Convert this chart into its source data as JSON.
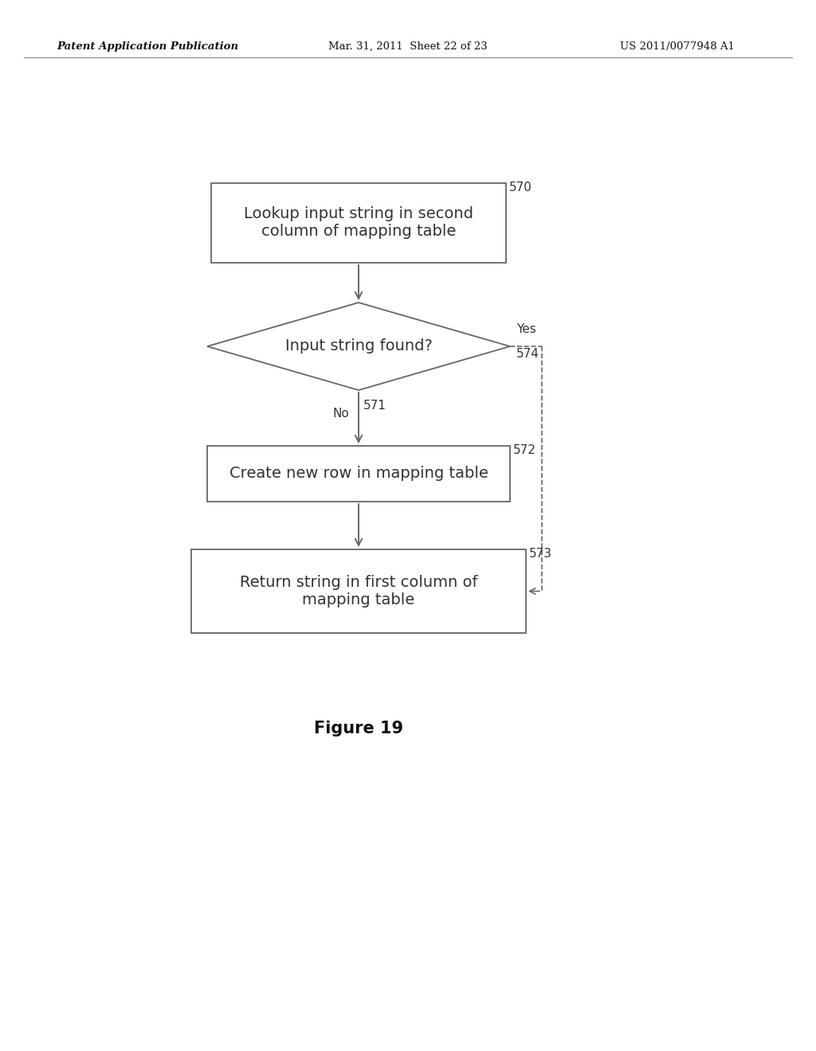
{
  "bg_color": "#ffffff",
  "header_left": "Patent Application Publication",
  "header_mid": "Mar. 31, 2011  Sheet 22 of 23",
  "header_right": "US 2011/0077948 A1",
  "figure_caption": "Figure 19",
  "box570_label": "570",
  "box570_text": "Lookup input string in second\ncolumn of mapping table",
  "diamond_yes_label": "Yes",
  "diamond_yes_num": "574",
  "diamond_text": "Input string found?",
  "no_label": "No",
  "label571": "571",
  "box572_label": "572",
  "box572_text": "Create new row in mapping table",
  "box573_label": "573",
  "box573_text": "Return string in first column of\nmapping table",
  "line_color": "#666666",
  "box_edge_color": "#666666",
  "text_color": "#333333",
  "font_size_body": 14,
  "font_size_label": 11,
  "font_size_header": 9.5,
  "font_size_caption": 15
}
